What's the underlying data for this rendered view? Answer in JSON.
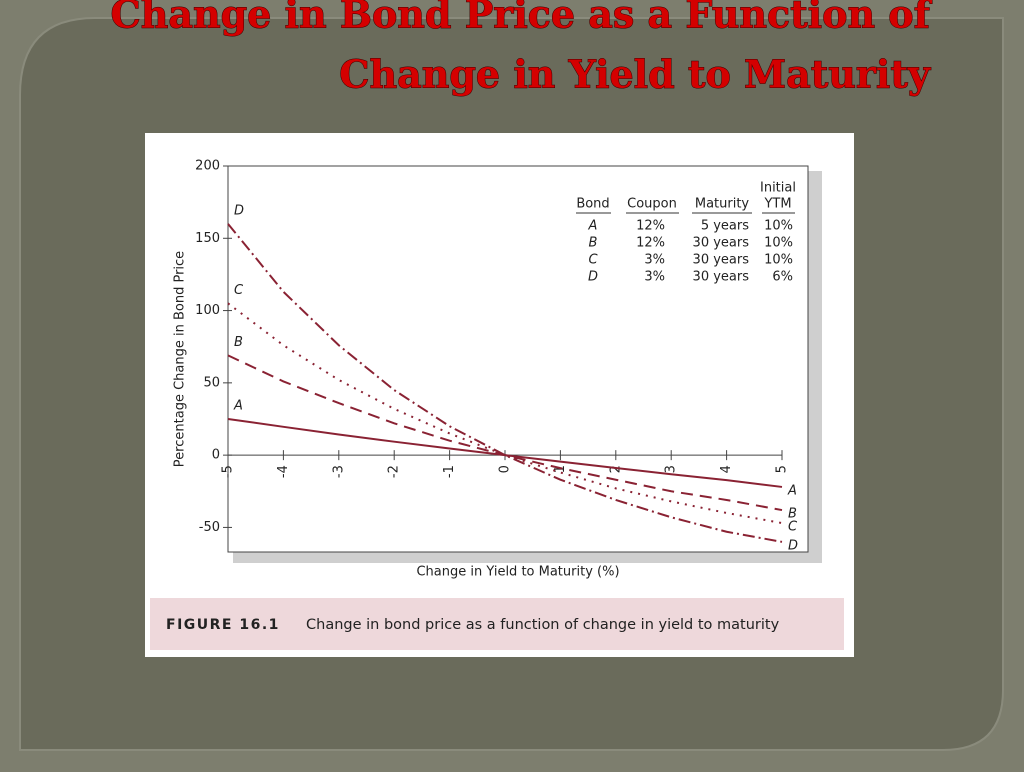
{
  "slide_title": [
    "Change in Bond Price as a Function of",
    "Change in Yield to Maturity"
  ],
  "chart_data": {
    "type": "line",
    "x_label": "Change in Yield to Maturity (%)",
    "y_label": "Percentage Change in Bond Price",
    "x": [
      -5,
      -4,
      -3,
      -2,
      -1,
      0,
      1,
      2,
      3,
      4,
      5
    ],
    "xlim": [
      -5,
      5
    ],
    "xticks": [
      -5,
      -4,
      -3,
      -2,
      -1,
      0,
      1,
      2,
      3,
      4,
      5
    ],
    "ylim": [
      -67,
      200
    ],
    "yticks": [
      -50,
      0,
      50,
      100,
      150,
      200
    ],
    "series": [
      {
        "name": "A",
        "color": "#8a2233",
        "dash": "none",
        "values": [
          25,
          19.6,
          14.3,
          9.3,
          4.6,
          0,
          -4.5,
          -8.9,
          -13.2,
          -17.3,
          -22
        ]
      },
      {
        "name": "B",
        "color": "#8a2233",
        "dash": "12 7",
        "values": [
          69,
          51,
          36,
          22,
          10,
          0,
          -9,
          -17,
          -25,
          -31,
          -38
        ]
      },
      {
        "name": "C",
        "color": "#8a2233",
        "dash": "2 6",
        "values": [
          105,
          76,
          52,
          32,
          15,
          0,
          -12,
          -23,
          -32,
          -40,
          -47
        ]
      },
      {
        "name": "D",
        "color": "#8a2233",
        "dash": "12 4 2 4",
        "values": [
          160,
          113,
          76,
          45,
          20,
          0,
          -17,
          -31,
          -43,
          -53,
          -60
        ]
      }
    ],
    "table": {
      "header_top": "Initial",
      "header": [
        "Bond",
        "Coupon",
        "Maturity",
        "YTM"
      ],
      "rows": [
        [
          "A",
          "12%",
          "5 years",
          "10%"
        ],
        [
          "B",
          "12%",
          "30 years",
          "10%"
        ],
        [
          "C",
          "3%",
          "30 years",
          "10%"
        ],
        [
          "D",
          "3%",
          "30 years",
          "6%"
        ]
      ]
    },
    "figure_number": "FIGURE 16.1",
    "caption": "Change in bond price as a function of change in yield to maturity"
  }
}
